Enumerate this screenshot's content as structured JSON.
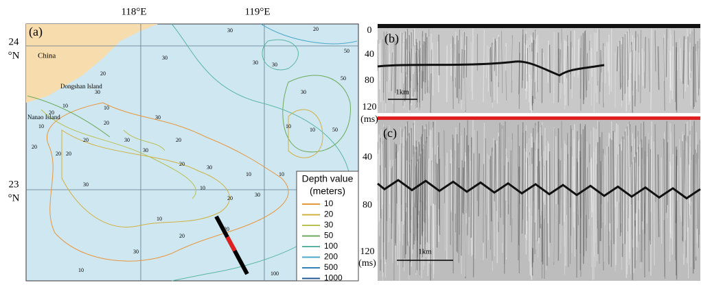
{
  "map": {
    "panel_label": "(a)",
    "lon_labels": [
      "118°E",
      "119°E"
    ],
    "lat_labels": [
      {
        "deg": "24",
        "unit": "°N"
      },
      {
        "deg": "23",
        "unit": "°N"
      }
    ],
    "places": [
      "China",
      "Dongshan Island",
      "Nanao Island"
    ],
    "contour_labels": [
      "30",
      "20",
      "50",
      "30",
      "30",
      "30",
      "20",
      "30",
      "10",
      "20",
      "10",
      "10",
      "30",
      "20",
      "20",
      "20",
      "20",
      "30",
      "20",
      "30",
      "20",
      "30",
      "10",
      "20",
      "10",
      "30",
      "20",
      "10",
      "20",
      "30",
      "10",
      "100",
      "10",
      "10",
      "50",
      "30",
      "50",
      "10",
      "30",
      "20"
    ],
    "legend": {
      "title": "Depth value",
      "unit": "(meters)",
      "entries": [
        {
          "label": "10",
          "color": "#e8963c"
        },
        {
          "label": "20",
          "color": "#d0b040"
        },
        {
          "label": "30",
          "color": "#b8c050"
        },
        {
          "label": "50",
          "color": "#6aaa5a"
        },
        {
          "label": "100",
          "color": "#58b4a0"
        },
        {
          "label": "200",
          "color": "#48a8c8"
        },
        {
          "label": "500",
          "color": "#3080b8"
        },
        {
          "label": "1000",
          "color": "#205890"
        }
      ]
    }
  },
  "profile_b": {
    "panel_label": "(b)",
    "ticks": [
      "0",
      "40",
      "80",
      "120"
    ],
    "unit": "(ms)",
    "scale": "1km"
  },
  "profile_c": {
    "panel_label": "(c)",
    "ticks": [
      "40",
      "80",
      "120"
    ],
    "unit": "(ms)",
    "scale": "1km"
  }
}
